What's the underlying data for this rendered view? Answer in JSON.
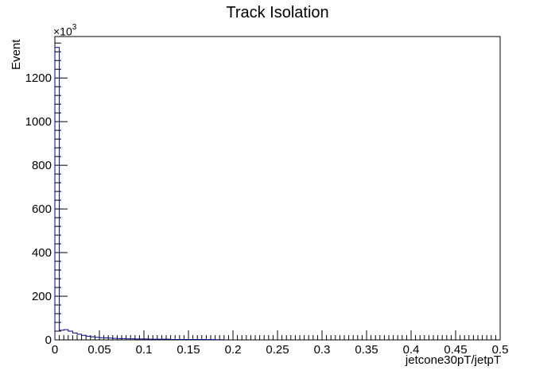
{
  "chart_data": {
    "type": "histogram",
    "title": "Track Isolation",
    "xlabel": "jetcone30pT/jetpT",
    "ylabel": "Event",
    "y_multiplier_base": "×10",
    "y_multiplier_exp": "3",
    "xlim": [
      0,
      0.5
    ],
    "ylim": [
      0,
      1390
    ],
    "x_tick_labels": [
      "0",
      "0.05",
      "0.1",
      "0.15",
      "0.2",
      "0.25",
      "0.3",
      "0.35",
      "0.4",
      "0.45",
      "0.5"
    ],
    "x_tick_values": [
      0,
      0.05,
      0.1,
      0.15,
      0.2,
      0.25,
      0.3,
      0.35,
      0.4,
      0.45,
      0.5
    ],
    "y_tick_labels": [
      "0",
      "200",
      "400",
      "600",
      "800",
      "1000",
      "1200"
    ],
    "y_tick_values": [
      0,
      200,
      400,
      600,
      800,
      1000,
      1200
    ],
    "bin_width": 0.005,
    "bin_values": [
      1340,
      44,
      47,
      40,
      32,
      26,
      21,
      17,
      14,
      12,
      10,
      9,
      8,
      7,
      6,
      6,
      5,
      5,
      4,
      4,
      4,
      3,
      3,
      3,
      3,
      3,
      2,
      2,
      2,
      2,
      2,
      2,
      2,
      2,
      1.5,
      1.5,
      1,
      1,
      0,
      0,
      0,
      0,
      0,
      0,
      0,
      0,
      0,
      0,
      0,
      0,
      0,
      0,
      0,
      0,
      0,
      0,
      0,
      0,
      0,
      0,
      0,
      0,
      0,
      0,
      0,
      0,
      0,
      0,
      0,
      0,
      0,
      0,
      0,
      0,
      0,
      0,
      0,
      0,
      0,
      0,
      0,
      0,
      0,
      0,
      0,
      0,
      0,
      0,
      0,
      0,
      0,
      0,
      0,
      0,
      0,
      0,
      0,
      0,
      0,
      0
    ],
    "line_color": "#000080",
    "grid": false
  }
}
